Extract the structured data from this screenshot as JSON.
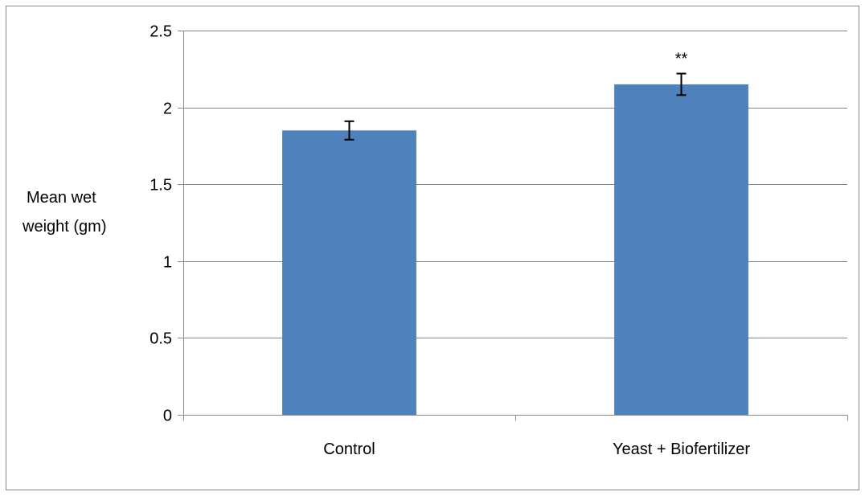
{
  "chart_data": {
    "type": "bar",
    "title": "",
    "xlabel": "",
    "ylabel": [
      "Mean wet",
      "weight (gm)"
    ],
    "categories": [
      "Control",
      "Yeast + Biofertilizer"
    ],
    "values": [
      1.85,
      2.15
    ],
    "errors": [
      0.06,
      0.07
    ],
    "annotations": [
      "",
      "**"
    ],
    "ylim": [
      0,
      2.5
    ],
    "yticks": [
      {
        "value": 0,
        "label": "0"
      },
      {
        "value": 0.5,
        "label": "0.5"
      },
      {
        "value": 1,
        "label": "1"
      },
      {
        "value": 1.5,
        "label": "1.5"
      },
      {
        "value": 2,
        "label": "2"
      },
      {
        "value": 2.5,
        "label": "2.5"
      }
    ],
    "grid": true,
    "legend": "none",
    "colors": {
      "bar": "#4F81BD",
      "grid": "#868686",
      "frame": "#868686",
      "error": "#000000"
    }
  }
}
